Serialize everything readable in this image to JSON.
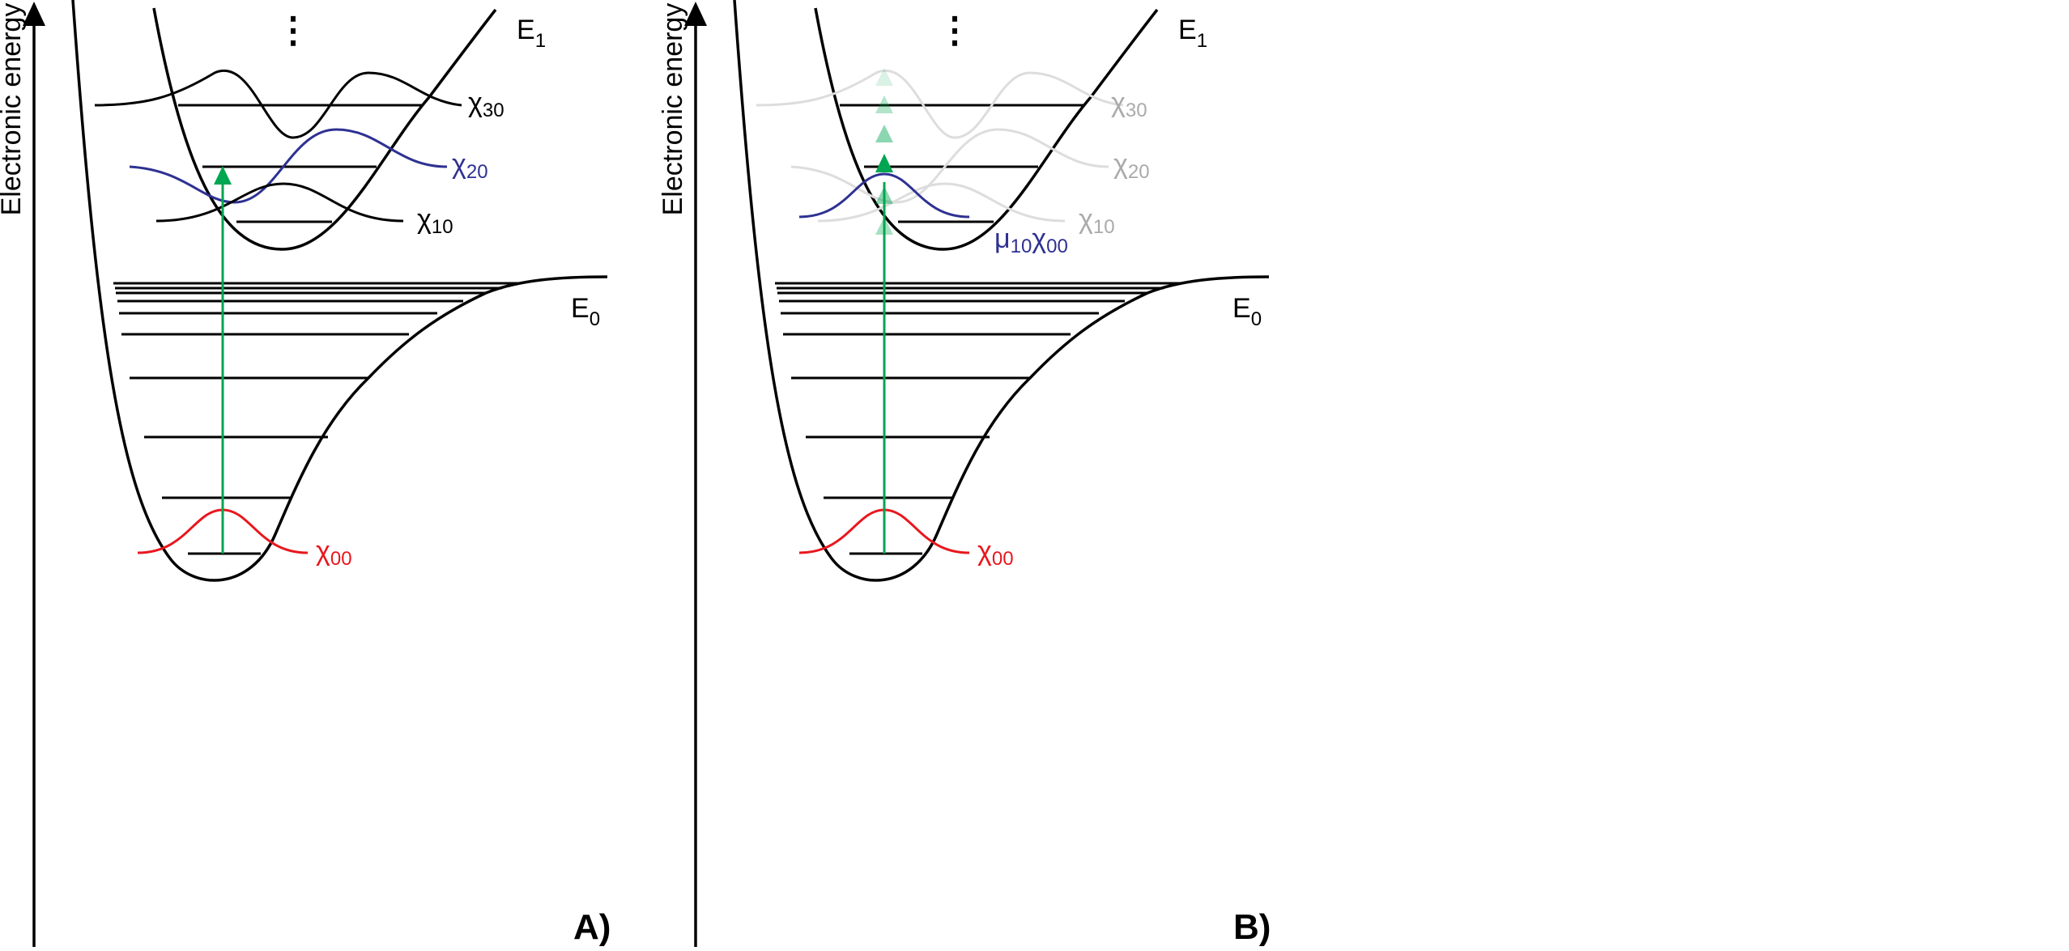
{
  "axis_label": "Electronic energy",
  "ellipsis": "⋮",
  "colors": {
    "ground_wf": "#e8171e",
    "excited_wf": "#2e3192",
    "transition": "#00a651",
    "faded": "#dddddd",
    "faded_label": "#aaaaaa"
  },
  "panel_a": {
    "panel_label": "A)",
    "e1": {
      "main": "E",
      "sub": "1"
    },
    "e0": {
      "main": "E",
      "sub": "0"
    },
    "chi30": {
      "main": "χ",
      "sub": "30"
    },
    "chi20": {
      "main": "χ",
      "sub": "20"
    },
    "chi10": {
      "main": "χ",
      "sub": "10"
    },
    "chi00": {
      "main": "χ",
      "sub": "00"
    }
  },
  "panel_b": {
    "panel_label": "B)",
    "e1": {
      "main": "E",
      "sub": "1"
    },
    "e0": {
      "main": "E",
      "sub": "0"
    },
    "chi30": {
      "main": "χ",
      "sub": "30"
    },
    "chi20": {
      "main": "χ",
      "sub": "20"
    },
    "chi10": {
      "main": "χ",
      "sub": "10"
    },
    "chi00": {
      "main": "χ",
      "sub": "00"
    },
    "mu_chi": {
      "mu": "μ",
      "mu_sub": "10",
      "chi": "χ",
      "chi_sub": "00"
    }
  }
}
